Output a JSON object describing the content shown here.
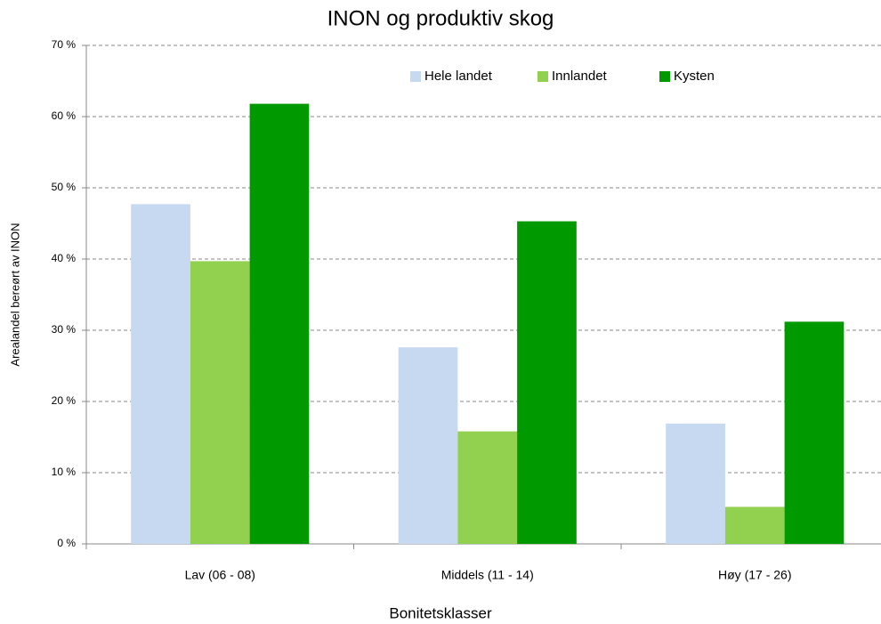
{
  "chart_data": {
    "type": "bar",
    "title": "INON og produktiv skog",
    "x_label": "Bonitetsklasser",
    "y_label": "Arealandel bereørt av INON",
    "categories": [
      "Lav (06 - 08)",
      "Middels (11 - 14)",
      "Høy (17 - 26)"
    ],
    "series": [
      {
        "name": "Hele landet",
        "color": "#c6d9f1",
        "values": [
          47.7,
          27.6,
          16.9
        ]
      },
      {
        "name": "Innlandet",
        "color": "#92d050",
        "values": [
          39.7,
          15.8,
          5.2
        ]
      },
      {
        "name": "Kysten",
        "color": "#009900",
        "values": [
          61.8,
          45.3,
          31.2
        ]
      }
    ],
    "ylim": [
      0,
      70
    ],
    "yticks": [
      {
        "value": 0,
        "label": "0 %"
      },
      {
        "value": 10,
        "label": "10 %"
      },
      {
        "value": 20,
        "label": "20 %"
      },
      {
        "value": 30,
        "label": "30 %"
      },
      {
        "value": 40,
        "label": "40 %"
      },
      {
        "value": 50,
        "label": "50 %"
      },
      {
        "value": 60,
        "label": "60 %"
      },
      {
        "value": 70,
        "label": "70 %"
      }
    ],
    "grid": true,
    "legend": "top"
  }
}
